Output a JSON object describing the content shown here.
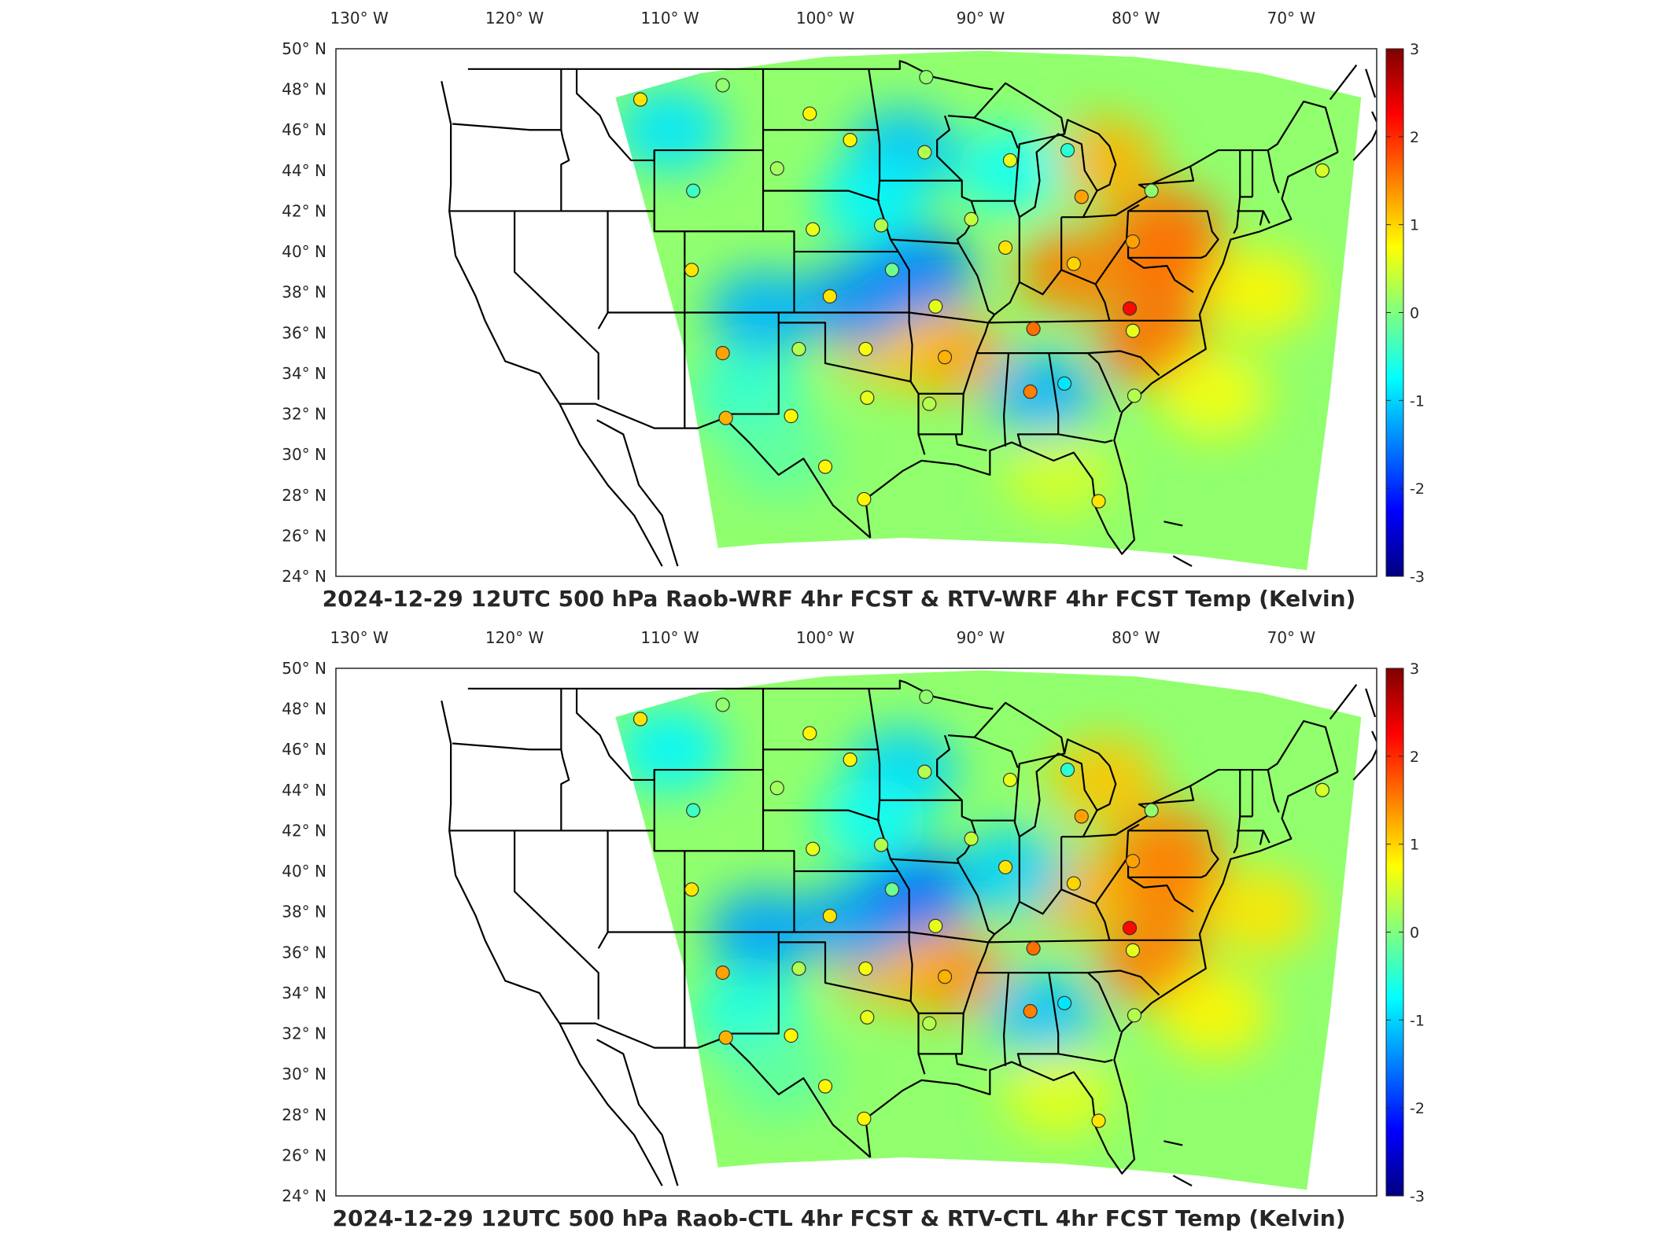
{
  "axes": {
    "lon_ticks": [
      "130 W",
      "120 W",
      "110 W",
      "100 W",
      "90 W",
      "80 W",
      "70 W"
    ],
    "lat_ticks": [
      "50 N",
      "48 N",
      "46 N",
      "44 N",
      "42 N",
      "40 N",
      "38 N",
      "36 N",
      "34 N",
      "32 N",
      "30 N",
      "28 N",
      "26 N",
      "24 N"
    ],
    "lon_range": [
      -131.5,
      -64.5
    ],
    "lat_range": [
      24,
      50
    ]
  },
  "colorbar": {
    "ticks": [
      "3",
      "2",
      "1",
      "0",
      "-1",
      "-2",
      "-3"
    ],
    "range": [
      -3,
      3
    ],
    "colormap": "jet"
  },
  "stations": [
    {
      "lon": -111.9,
      "lat": 47.5,
      "v": 0.9
    },
    {
      "lon": -106.6,
      "lat": 48.2,
      "v": 0.1
    },
    {
      "lon": -101.0,
      "lat": 46.8,
      "v": 0.8
    },
    {
      "lon": -98.4,
      "lat": 45.5,
      "v": 0.8
    },
    {
      "lon": -93.5,
      "lat": 48.6,
      "v": 0.1
    },
    {
      "lon": -93.6,
      "lat": 44.9,
      "v": 0.3
    },
    {
      "lon": -103.1,
      "lat": 44.1,
      "v": 0.2
    },
    {
      "lon": -108.5,
      "lat": 43.0,
      "v": -0.4
    },
    {
      "lon": -88.1,
      "lat": 44.5,
      "v": 0.6
    },
    {
      "lon": -84.4,
      "lat": 45.0,
      "v": -0.5
    },
    {
      "lon": -83.5,
      "lat": 42.7,
      "v": 1.3
    },
    {
      "lon": -79.0,
      "lat": 43.0,
      "v": 0.1
    },
    {
      "lon": -68.0,
      "lat": 44.0,
      "v": 0.5
    },
    {
      "lon": -100.8,
      "lat": 41.1,
      "v": 0.6
    },
    {
      "lon": -96.4,
      "lat": 41.3,
      "v": 0.3
    },
    {
      "lon": -90.6,
      "lat": 41.6,
      "v": 0.4
    },
    {
      "lon": -88.4,
      "lat": 40.2,
      "v": 0.9
    },
    {
      "lon": -80.2,
      "lat": 40.5,
      "v": 1.3
    },
    {
      "lon": -84.0,
      "lat": 39.4,
      "v": 1.0
    },
    {
      "lon": -108.6,
      "lat": 39.1,
      "v": 0.9
    },
    {
      "lon": -99.7,
      "lat": 37.8,
      "v": 0.9
    },
    {
      "lon": -95.7,
      "lat": 39.1,
      "v": -0.1
    },
    {
      "lon": -92.9,
      "lat": 37.3,
      "v": 0.6
    },
    {
      "lon": -86.6,
      "lat": 36.2,
      "v": 1.6
    },
    {
      "lon": -80.4,
      "lat": 37.2,
      "v": 2.2
    },
    {
      "lon": -80.2,
      "lat": 36.1,
      "v": 0.6
    },
    {
      "lon": -106.6,
      "lat": 35.0,
      "v": 1.3
    },
    {
      "lon": -101.7,
      "lat": 35.2,
      "v": 0.3
    },
    {
      "lon": -97.4,
      "lat": 35.2,
      "v": 0.7
    },
    {
      "lon": -92.3,
      "lat": 34.8,
      "v": 1.2
    },
    {
      "lon": -86.8,
      "lat": 33.1,
      "v": 1.5
    },
    {
      "lon": -84.6,
      "lat": 33.5,
      "v": -0.9
    },
    {
      "lon": -80.1,
      "lat": 32.9,
      "v": 0.3
    },
    {
      "lon": -97.3,
      "lat": 32.8,
      "v": 0.6
    },
    {
      "lon": -93.3,
      "lat": 32.5,
      "v": 0.3
    },
    {
      "lon": -106.4,
      "lat": 31.8,
      "v": 1.2
    },
    {
      "lon": -102.2,
      "lat": 31.9,
      "v": 0.8
    },
    {
      "lon": -100.0,
      "lat": 29.4,
      "v": 0.8
    },
    {
      "lon": -97.5,
      "lat": 27.8,
      "v": 0.8
    },
    {
      "lon": -82.4,
      "lat": 27.7,
      "v": 0.9
    }
  ],
  "panels": [
    {
      "title": "2024-12-29 12UTC 500 hPa Raob-WRF 4hr FCST & RTV-WRF 4hr FCST Temp (Kelvin)",
      "anomalies": [
        {
          "lon": -78,
          "lat": 39,
          "v": 1.6
        },
        {
          "lon": -84,
          "lat": 39,
          "v": 1.5
        },
        {
          "lon": -78,
          "lat": 41,
          "v": 1.6
        },
        {
          "lon": -79,
          "lat": 35.5,
          "v": 1.6
        },
        {
          "lon": -92,
          "lat": 35,
          "v": 1.3
        },
        {
          "lon": -96,
          "lat": 35.5,
          "v": 1.1
        },
        {
          "lon": -82,
          "lat": 44.5,
          "v": 1.2
        },
        {
          "lon": -98,
          "lat": 37.5,
          "v": -1.4
        },
        {
          "lon": -94,
          "lat": 39,
          "v": -1.5
        },
        {
          "lon": -104,
          "lat": 37,
          "v": -1.2
        },
        {
          "lon": -110,
          "lat": 46,
          "v": -0.9
        },
        {
          "lon": -95,
          "lat": 45,
          "v": -1.1
        },
        {
          "lon": -88,
          "lat": 44,
          "v": -0.7
        },
        {
          "lon": -86,
          "lat": 33,
          "v": -1.2
        },
        {
          "lon": -105,
          "lat": 33,
          "v": -0.5
        },
        {
          "lon": -97,
          "lat": 42.5,
          "v": -0.8
        },
        {
          "lon": -75,
          "lat": 33,
          "v": 0.7
        },
        {
          "lon": -72,
          "lat": 38,
          "v": 0.8
        },
        {
          "lon": -85,
          "lat": 29,
          "v": 0.5
        },
        {
          "lon": -103,
          "lat": 30,
          "v": -0.2
        }
      ]
    },
    {
      "title": "2024-12-29 12UTC 500 hPa Raob-CTL 4hr FCST & RTV-CTL 4hr FCST Temp (Kelvin)",
      "anomalies": [
        {
          "lon": -78,
          "lat": 39,
          "v": 1.5
        },
        {
          "lon": -84,
          "lat": 39,
          "v": 1.2
        },
        {
          "lon": -78,
          "lat": 41,
          "v": 1.5
        },
        {
          "lon": -79,
          "lat": 35.5,
          "v": 1.5
        },
        {
          "lon": -92,
          "lat": 35,
          "v": 1.4
        },
        {
          "lon": -96,
          "lat": 35.5,
          "v": 1.2
        },
        {
          "lon": -82,
          "lat": 44.5,
          "v": 1.1
        },
        {
          "lon": -98,
          "lat": 37.5,
          "v": -1.3
        },
        {
          "lon": -94,
          "lat": 39,
          "v": -1.6
        },
        {
          "lon": -104,
          "lat": 37,
          "v": -1.3
        },
        {
          "lon": -110,
          "lat": 46,
          "v": -0.8
        },
        {
          "lon": -95,
          "lat": 45,
          "v": -1.0
        },
        {
          "lon": -88,
          "lat": 40,
          "v": -1.0
        },
        {
          "lon": -86,
          "lat": 33,
          "v": -1.1
        },
        {
          "lon": -105,
          "lat": 33,
          "v": -0.6
        },
        {
          "lon": -97,
          "lat": 42.5,
          "v": -0.7
        },
        {
          "lon": -75,
          "lat": 33,
          "v": 0.8
        },
        {
          "lon": -72,
          "lat": 38,
          "v": 0.9
        },
        {
          "lon": -85,
          "lat": 29,
          "v": 0.6
        },
        {
          "lon": -103,
          "lat": 30,
          "v": -0.2
        }
      ]
    }
  ]
}
